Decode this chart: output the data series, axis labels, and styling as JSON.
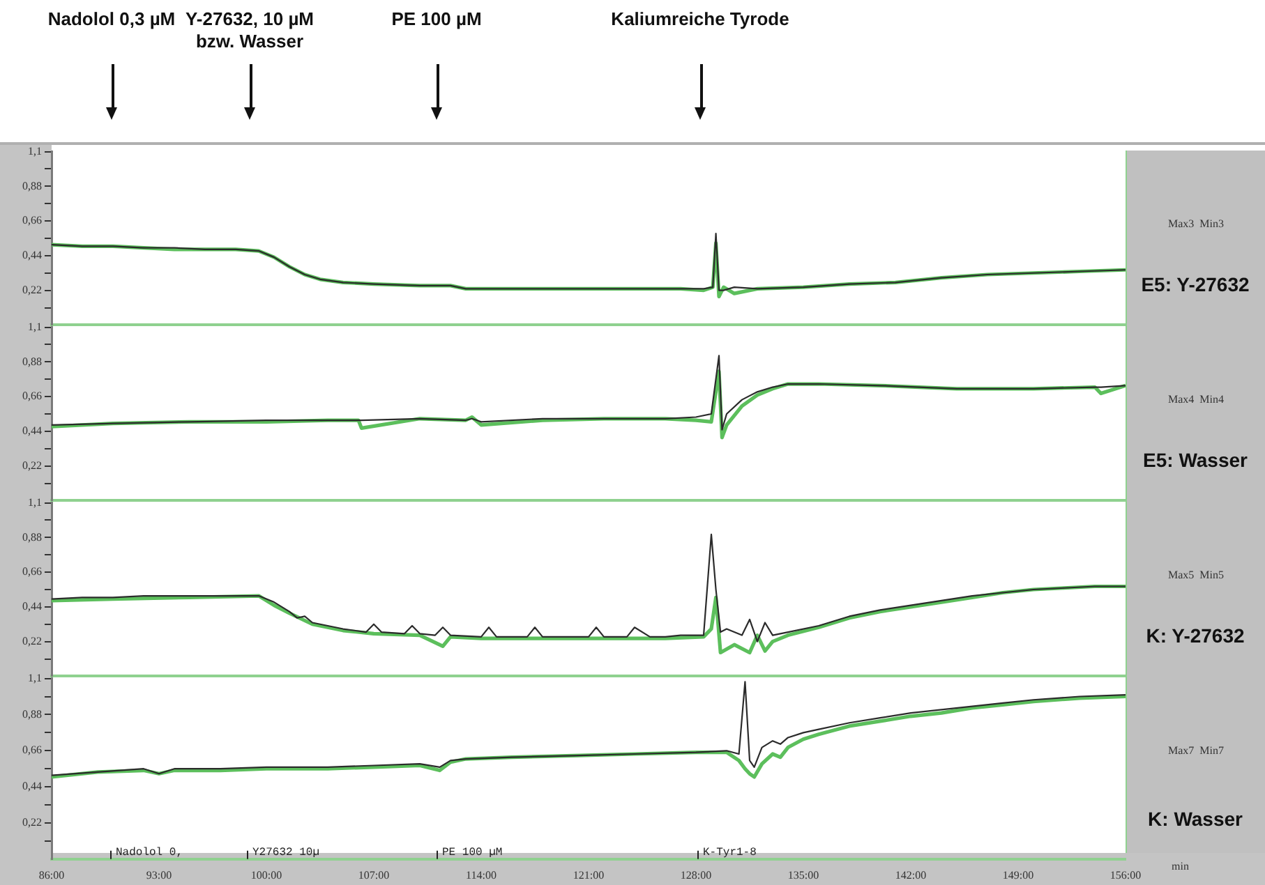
{
  "chart_data": [
    {
      "type": "line",
      "annotations": [
        "Max3  Min3",
        "E5: Y-27632",
        "Nadolol 0,3 µM",
        "Y-27632, 10 µM\nbzw. Wasser",
        "PE 100 µM",
        "Kaliumreiche Tyrode"
      ],
      "xlim": [
        86,
        156
      ],
      "ylim": [
        0,
        1.1
      ],
      "yticks": [
        {
          "value": 0.11,
          "label": null
        },
        {
          "value": 0.22,
          "label": "0,22"
        },
        {
          "value": 0.33,
          "label": null
        },
        {
          "value": 0.44,
          "label": "0,44"
        },
        {
          "value": 0.55,
          "label": null
        },
        {
          "value": 0.66,
          "label": "0,66"
        },
        {
          "value": 0.77,
          "label": null
        },
        {
          "value": 0.88,
          "label": "0,88"
        },
        {
          "value": 0.99,
          "label": null
        },
        {
          "value": 1.1,
          "label": "1,1"
        }
      ],
      "tick_labels": "y",
      "grid": false,
      "legend": false,
      "marker": "none",
      "line_style": "solid",
      "series": [
        {
          "color": "#5cbf5c",
          "x": [
            86,
            88,
            90,
            92,
            94,
            96,
            98,
            99.5,
            100.5,
            101.5,
            102.5,
            103.5,
            105,
            107,
            110,
            112,
            113,
            116,
            120,
            124,
            127,
            128.5,
            129.1,
            129.3,
            129.5,
            129.8,
            130.5,
            132,
            135,
            138,
            141,
            144,
            147,
            150,
            153,
            156
          ],
          "values": [
            0.51,
            0.5,
            0.5,
            0.49,
            0.48,
            0.48,
            0.48,
            0.47,
            0.43,
            0.37,
            0.32,
            0.29,
            0.27,
            0.26,
            0.25,
            0.25,
            0.23,
            0.23,
            0.23,
            0.23,
            0.23,
            0.22,
            0.24,
            0.52,
            0.18,
            0.24,
            0.2,
            0.23,
            0.24,
            0.26,
            0.27,
            0.3,
            0.32,
            0.33,
            0.34,
            0.35
          ]
        },
        {
          "color": "#2b2b2b",
          "x": [
            86,
            88,
            90,
            92,
            94,
            96,
            98,
            99.5,
            100.5,
            101.5,
            102.5,
            103.5,
            105,
            107,
            110,
            112,
            113,
            116,
            120,
            124,
            127,
            128.5,
            129.1,
            129.3,
            129.5,
            129.8,
            130.5,
            132,
            135,
            138,
            141,
            144,
            147,
            150,
            153,
            156
          ],
          "values": [
            0.51,
            0.5,
            0.5,
            0.49,
            0.49,
            0.48,
            0.48,
            0.47,
            0.43,
            0.37,
            0.32,
            0.29,
            0.27,
            0.26,
            0.25,
            0.25,
            0.23,
            0.23,
            0.23,
            0.23,
            0.23,
            0.23,
            0.24,
            0.58,
            0.22,
            0.22,
            0.24,
            0.23,
            0.24,
            0.26,
            0.27,
            0.3,
            0.32,
            0.33,
            0.34,
            0.35
          ]
        }
      ]
    },
    {
      "type": "line",
      "annotations": [
        "Max4  Min4",
        "E5: Wasser"
      ],
      "xlim": [
        86,
        156
      ],
      "ylim": [
        0,
        1.1
      ],
      "yticks": [
        {
          "value": 0.11,
          "label": null
        },
        {
          "value": 0.22,
          "label": "0,22"
        },
        {
          "value": 0.33,
          "label": null
        },
        {
          "value": 0.44,
          "label": "0,44"
        },
        {
          "value": 0.55,
          "label": null
        },
        {
          "value": 0.66,
          "label": "0,66"
        },
        {
          "value": 0.77,
          "label": null
        },
        {
          "value": 0.88,
          "label": "0,88"
        },
        {
          "value": 0.99,
          "label": null
        },
        {
          "value": 1.1,
          "label": "1,1"
        }
      ],
      "tick_labels": "y",
      "grid": false,
      "legend": false,
      "marker": "none",
      "line_style": "solid",
      "series": [
        {
          "color": "#5cbf5c",
          "x": [
            86,
            90,
            95,
            100,
            104,
            106,
            106.2,
            110,
            113,
            113.4,
            114,
            118,
            122,
            126,
            128,
            129,
            129.5,
            129.7,
            130,
            131,
            132,
            133,
            134,
            136,
            140,
            145,
            150,
            154,
            154.4,
            156
          ],
          "values": [
            0.47,
            0.49,
            0.5,
            0.5,
            0.51,
            0.51,
            0.46,
            0.52,
            0.51,
            0.53,
            0.48,
            0.51,
            0.52,
            0.52,
            0.51,
            0.5,
            0.82,
            0.4,
            0.48,
            0.6,
            0.67,
            0.71,
            0.74,
            0.74,
            0.73,
            0.71,
            0.71,
            0.72,
            0.68,
            0.73
          ]
        },
        {
          "color": "#2b2b2b",
          "x": [
            86,
            90,
            95,
            100,
            104,
            106,
            106.2,
            110,
            113,
            113.4,
            114,
            118,
            122,
            126,
            128,
            129,
            129.5,
            129.7,
            130,
            131,
            132,
            133,
            134,
            136,
            140,
            145,
            150,
            154,
            154.4,
            156
          ],
          "values": [
            0.48,
            0.49,
            0.5,
            0.51,
            0.51,
            0.51,
            0.51,
            0.52,
            0.51,
            0.52,
            0.5,
            0.52,
            0.52,
            0.52,
            0.53,
            0.55,
            0.92,
            0.45,
            0.55,
            0.64,
            0.69,
            0.72,
            0.74,
            0.74,
            0.73,
            0.71,
            0.71,
            0.72,
            0.72,
            0.73
          ]
        }
      ]
    },
    {
      "type": "line",
      "annotations": [
        "Max5  Min5",
        "K: Y-27632"
      ],
      "xlim": [
        86,
        156
      ],
      "ylim": [
        0,
        1.1
      ],
      "yticks": [
        {
          "value": 0.11,
          "label": null
        },
        {
          "value": 0.22,
          "label": "0,22"
        },
        {
          "value": 0.33,
          "label": null
        },
        {
          "value": 0.44,
          "label": "0,44"
        },
        {
          "value": 0.55,
          "label": null
        },
        {
          "value": 0.66,
          "label": "0,66"
        },
        {
          "value": 0.77,
          "label": null
        },
        {
          "value": 0.88,
          "label": "0,88"
        },
        {
          "value": 0.99,
          "label": null
        },
        {
          "value": 1.1,
          "label": "1,1"
        }
      ],
      "tick_labels": "y",
      "grid": false,
      "legend": false,
      "marker": "none",
      "line_style": "solid",
      "series": [
        {
          "color": "#5cbf5c",
          "x": [
            86,
            90,
            95,
            99.5,
            100.5,
            101.5,
            103,
            105,
            107,
            110,
            111.5,
            112,
            114,
            118,
            122,
            126,
            128.5,
            129,
            129.3,
            129.6,
            130.5,
            131.5,
            132,
            132.5,
            133,
            134,
            136,
            138,
            140,
            142,
            144,
            146,
            148,
            150,
            152,
            154,
            156
          ],
          "values": [
            0.48,
            0.49,
            0.5,
            0.51,
            0.45,
            0.4,
            0.33,
            0.29,
            0.27,
            0.26,
            0.19,
            0.25,
            0.24,
            0.24,
            0.24,
            0.24,
            0.25,
            0.3,
            0.5,
            0.15,
            0.2,
            0.15,
            0.26,
            0.16,
            0.22,
            0.26,
            0.31,
            0.37,
            0.41,
            0.44,
            0.47,
            0.5,
            0.53,
            0.55,
            0.56,
            0.57,
            0.57
          ]
        },
        {
          "color": "#2b2b2b",
          "x": [
            86,
            88,
            90,
            92,
            94,
            96,
            98,
            99.5,
            100.5,
            101.5,
            102,
            102.5,
            103,
            104,
            105,
            106.5,
            107,
            107.5,
            109,
            109.5,
            110,
            111,
            111.5,
            112,
            114,
            114.5,
            115,
            117,
            117.5,
            118,
            121,
            121.5,
            122,
            123.5,
            124,
            125,
            126,
            127,
            128.5,
            129,
            129.3,
            129.6,
            130,
            131,
            131.5,
            132,
            132.5,
            133,
            134,
            136,
            138,
            140,
            142,
            144,
            146,
            148,
            150,
            152,
            154,
            156
          ],
          "values": [
            0.49,
            0.5,
            0.5,
            0.51,
            0.51,
            0.51,
            0.51,
            0.51,
            0.47,
            0.41,
            0.37,
            0.38,
            0.34,
            0.32,
            0.3,
            0.28,
            0.33,
            0.28,
            0.27,
            0.32,
            0.27,
            0.26,
            0.31,
            0.26,
            0.25,
            0.31,
            0.25,
            0.25,
            0.31,
            0.25,
            0.25,
            0.31,
            0.25,
            0.25,
            0.31,
            0.25,
            0.25,
            0.26,
            0.26,
            0.9,
            0.55,
            0.28,
            0.3,
            0.26,
            0.36,
            0.22,
            0.34,
            0.26,
            0.28,
            0.32,
            0.38,
            0.42,
            0.45,
            0.48,
            0.51,
            0.53,
            0.55,
            0.56,
            0.57,
            0.57
          ]
        }
      ]
    },
    {
      "type": "line",
      "xlabel": "min",
      "annotations": [
        "Max7  Min7",
        "K: Wasser",
        "Nadolol 0,",
        "Y27632 10µ",
        "PE 100 µM",
        "K-Tyr1-8"
      ],
      "xlim": [
        86,
        156
      ],
      "xticks": [
        {
          "value": 86,
          "label": "86:00"
        },
        {
          "value": 93,
          "label": "93:00"
        },
        {
          "value": 100,
          "label": "100:00"
        },
        {
          "value": 107,
          "label": "107:00"
        },
        {
          "value": 114,
          "label": "114:00"
        },
        {
          "value": 121,
          "label": "121:00"
        },
        {
          "value": 128,
          "label": "128:00"
        },
        {
          "value": 135,
          "label": "135:00"
        },
        {
          "value": 142,
          "label": "142:00"
        },
        {
          "value": 149,
          "label": "149:00"
        },
        {
          "value": 156,
          "label": "156:00"
        }
      ],
      "ylim": [
        0,
        1.1
      ],
      "yticks": [
        {
          "value": 0.11,
          "label": null
        },
        {
          "value": 0.22,
          "label": "0,22"
        },
        {
          "value": 0.33,
          "label": null
        },
        {
          "value": 0.44,
          "label": "0,44"
        },
        {
          "value": 0.55,
          "label": null
        },
        {
          "value": 0.66,
          "label": "0,66"
        },
        {
          "value": 0.77,
          "label": null
        },
        {
          "value": 0.88,
          "label": "0,88"
        },
        {
          "value": 0.99,
          "label": null
        },
        {
          "value": 1.1,
          "label": "1,1"
        }
      ],
      "grid": false,
      "legend": false,
      "marker": "none",
      "line_style": "solid",
      "series": [
        {
          "color": "#5cbf5c",
          "x": [
            86,
            89,
            92,
            93,
            94,
            97,
            100,
            104,
            107,
            110,
            111.3,
            112,
            113,
            116,
            120,
            124,
            128,
            130,
            130.8,
            131.2,
            131.5,
            131.8,
            132.3,
            133,
            133.5,
            134,
            135,
            136,
            138,
            140,
            142,
            144,
            146,
            148,
            150,
            153,
            156
          ],
          "values": [
            0.5,
            0.53,
            0.54,
            0.52,
            0.54,
            0.54,
            0.55,
            0.55,
            0.56,
            0.57,
            0.54,
            0.59,
            0.61,
            0.62,
            0.63,
            0.64,
            0.65,
            0.65,
            0.6,
            0.55,
            0.52,
            0.5,
            0.58,
            0.64,
            0.62,
            0.68,
            0.73,
            0.76,
            0.81,
            0.84,
            0.87,
            0.89,
            0.92,
            0.94,
            0.96,
            0.98,
            0.99
          ]
        },
        {
          "color": "#2b2b2b",
          "x": [
            86,
            89,
            92,
            93,
            94,
            97,
            100,
            104,
            107,
            110,
            111.3,
            112,
            113,
            116,
            120,
            124,
            128,
            130,
            130.8,
            131.2,
            131.5,
            131.8,
            132.3,
            133,
            133.5,
            134,
            135,
            136,
            138,
            140,
            142,
            144,
            146,
            148,
            150,
            153,
            156
          ],
          "values": [
            0.51,
            0.53,
            0.55,
            0.52,
            0.55,
            0.55,
            0.56,
            0.56,
            0.57,
            0.58,
            0.56,
            0.6,
            0.61,
            0.62,
            0.63,
            0.64,
            0.65,
            0.66,
            0.64,
            1.08,
            0.6,
            0.56,
            0.68,
            0.72,
            0.7,
            0.74,
            0.77,
            0.79,
            0.83,
            0.86,
            0.89,
            0.91,
            0.93,
            0.95,
            0.97,
            0.99,
            1.0
          ]
        }
      ]
    }
  ]
}
